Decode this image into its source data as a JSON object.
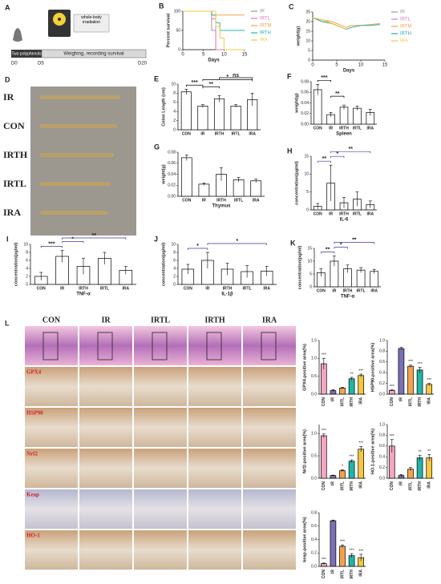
{
  "schematic": {
    "panel": "A",
    "phase1": "Two polyphenols",
    "phase2": "Weighing, recording survival",
    "irradiation": "whole-body irradiation",
    "days": [
      "D0",
      "D5",
      "D20"
    ]
  },
  "photo": {
    "panel": "D",
    "labels": [
      "IR",
      "CON",
      "IRTH",
      "IRTL",
      "IRA"
    ]
  },
  "histology": {
    "panel": "L",
    "columns": [
      "CON",
      "IR",
      "IRTL",
      "IRTH",
      "IRA"
    ],
    "rows": [
      "GPX4",
      "HSP90",
      "Nrf2",
      "Keap",
      "HO-1"
    ]
  },
  "chart_data": [
    {
      "panel": "B",
      "type": "line",
      "step": true,
      "ylabel": "Percent survival",
      "xlabel": "Days",
      "x": [
        0,
        6,
        7,
        8,
        9,
        10,
        15
      ],
      "xlim": [
        0,
        15
      ],
      "xticks": [
        0,
        5,
        10,
        15
      ],
      "ylim": [
        0,
        100
      ],
      "yticks": [
        0,
        50,
        100
      ],
      "series": [
        {
          "name": "IR",
          "color": "#999999",
          "values": [
            100,
            100,
            50,
            0,
            0,
            0,
            0
          ]
        },
        {
          "name": "IRTL",
          "color": "#e377c2",
          "values": [
            100,
            100,
            80,
            0,
            0,
            0,
            0
          ]
        },
        {
          "name": "IRTM",
          "color": "#f4a24a",
          "values": [
            100,
            100,
            90,
            90,
            90,
            90,
            90
          ]
        },
        {
          "name": "IRTH",
          "color": "#22b5a5",
          "values": [
            100,
            100,
            90,
            70,
            50,
            50,
            50
          ]
        },
        {
          "name": "IRA",
          "color": "#f5c842",
          "values": [
            100,
            100,
            100,
            60,
            30,
            0,
            0
          ]
        }
      ]
    },
    {
      "panel": "C",
      "type": "line",
      "ylabel": "weight(g)",
      "xlabel": "Days",
      "x": [
        0,
        2,
        4,
        6,
        7,
        8,
        10,
        12,
        14
      ],
      "xlim": [
        0,
        15
      ],
      "xticks": [
        0,
        5,
        10,
        15
      ],
      "ylim": [
        0,
        25
      ],
      "yticks": [
        0,
        5,
        10,
        15,
        20,
        25
      ],
      "series": [
        {
          "name": "IR",
          "color": "#999999",
          "values": [
            22,
            21,
            19,
            17,
            16,
            null,
            null,
            null,
            null
          ]
        },
        {
          "name": "IRTL",
          "color": "#e377c2",
          "values": [
            22,
            20,
            19,
            17,
            16,
            null,
            null,
            null,
            null
          ]
        },
        {
          "name": "IRTM",
          "color": "#f4a24a",
          "values": [
            22,
            21,
            20,
            18,
            17,
            18,
            18,
            18.5,
            19
          ]
        },
        {
          "name": "IRTH",
          "color": "#22b5a5",
          "values": [
            22,
            20,
            19,
            17,
            16,
            17,
            18,
            18,
            18.5
          ]
        },
        {
          "name": "IRA",
          "color": "#f5c842",
          "values": [
            22,
            21,
            19,
            17,
            16,
            null,
            null,
            null,
            null
          ]
        }
      ]
    },
    {
      "panel": "E",
      "type": "bar",
      "ylabel": "Colon Length (cm)",
      "categories": [
        "CON",
        "IR",
        "IRTH",
        "IRTL",
        "IRA"
      ],
      "values": [
        8.3,
        5.2,
        6.8,
        5.2,
        6.6
      ],
      "errors": [
        0.6,
        0.3,
        0.7,
        0.3,
        1.4
      ],
      "color": "#ffffff",
      "edge": "#000000",
      "ylim": [
        0,
        10
      ],
      "yticks": [
        0,
        2,
        4,
        6,
        8,
        10
      ],
      "bracket_color": "#000000",
      "annotations": [
        {
          "text": "***",
          "between": [
            "CON",
            "IR"
          ]
        },
        {
          "text": "**",
          "between": [
            "IR",
            "IRTH"
          ]
        },
        {
          "text": "*",
          "between": [
            "IR",
            "IRA"
          ]
        },
        {
          "text": "ns",
          "between": [
            "IRTH",
            "IRA"
          ]
        }
      ]
    },
    {
      "panel": "F",
      "type": "bar",
      "ylabel": "weight(g)",
      "xlabel": "Spleen",
      "categories": [
        "CON",
        "IR",
        "IRTH",
        "IRTL",
        "IRA"
      ],
      "values": [
        0.065,
        0.018,
        0.032,
        0.03,
        0.022
      ],
      "errors": [
        0.01,
        0.004,
        0.004,
        0.004,
        0.006
      ],
      "color": "#ffffff",
      "edge": "#000000",
      "ylim": [
        0,
        0.08
      ],
      "yticks": [
        {
          "value": 0,
          "label": "0.00"
        },
        0.02,
        0.04,
        0.06,
        0.08
      ],
      "bracket_color": "#000000",
      "annotations": [
        {
          "text": "***",
          "between": [
            "CON",
            "IR"
          ]
        },
        {
          "text": "**",
          "between": [
            "IR",
            "IRTH"
          ]
        }
      ]
    },
    {
      "panel": "G",
      "type": "bar",
      "ylabel": "weight(g)",
      "xlabel": "Thymus",
      "categories": [
        "CON",
        "IR",
        "IRTH",
        "IRTL",
        "IRA"
      ],
      "values": [
        0.07,
        0.022,
        0.04,
        0.03,
        0.028
      ],
      "errors": [
        0.005,
        0.002,
        0.012,
        0.004,
        0.003
      ],
      "color": "#ffffff",
      "edge": "#000000",
      "ylim": [
        0,
        0.08
      ],
      "yticks": [
        {
          "value": 0,
          "label": "0.00"
        },
        0.02,
        0.04,
        0.06,
        0.08
      ]
    },
    {
      "panel": "H",
      "type": "bar",
      "ylabel": "concentration(pg/ml)",
      "xlabel": "IL-6",
      "categories": [
        "CON",
        "IR",
        "IRTH",
        "IRTL",
        "IRA"
      ],
      "values": [
        1,
        7.5,
        2,
        3,
        1.5
      ],
      "errors": [
        0.8,
        5,
        1.5,
        2,
        1
      ],
      "color": "#ffffff",
      "edge": "#000000",
      "ylim": [
        0,
        15
      ],
      "yticks": [
        0,
        5,
        10,
        15
      ],
      "bracket_color": "#3a3a9a",
      "annotations": [
        {
          "text": "**",
          "between": [
            "CON",
            "IR"
          ]
        },
        {
          "text": "*",
          "between": [
            "IR",
            "IRTH"
          ]
        },
        {
          "text": "**",
          "between": [
            "IR",
            "IRA"
          ]
        }
      ]
    },
    {
      "panel": "I",
      "type": "bar",
      "ylabel": "concentration(pg/ml)",
      "xlabel": "TNF-α",
      "categories": [
        "CON",
        "IR",
        "IRTH",
        "IRTL",
        "IRA"
      ],
      "values": [
        2,
        7,
        4.5,
        6.5,
        3.5
      ],
      "errors": [
        1,
        1.5,
        2,
        1.5,
        1
      ],
      "color": "#ffffff",
      "edge": "#000000",
      "ylim": [
        0,
        10
      ],
      "yticks": [
        0,
        2,
        4,
        6,
        8,
        10
      ],
      "bracket_color": "#3a3a9a",
      "annotations": [
        {
          "text": "***",
          "between": [
            "CON",
            "IR"
          ]
        },
        {
          "text": "*",
          "between": [
            "IR",
            "IRTH"
          ]
        },
        {
          "text": "**",
          "between": [
            "IR",
            "IRA"
          ]
        }
      ]
    },
    {
      "panel": "J",
      "type": "bar",
      "ylabel": "concentration(pg/ml)",
      "xlabel": "IL-1β",
      "categories": [
        "CON",
        "IR",
        "IRTH",
        "IRTL",
        "IRA"
      ],
      "values": [
        3.8,
        6,
        3.8,
        3.2,
        3.3
      ],
      "errors": [
        1.2,
        2,
        1.5,
        1.5,
        1.2
      ],
      "color": "#ffffff",
      "edge": "#000000",
      "ylim": [
        0,
        10
      ],
      "yticks": [
        0,
        2,
        4,
        6,
        8,
        10
      ],
      "bracket_color": "#3a3a9a",
      "annotations": [
        {
          "text": "*",
          "between": [
            "CON",
            "IR"
          ]
        },
        {
          "text": "*",
          "between": [
            "IR",
            "IRA"
          ]
        }
      ]
    },
    {
      "panel": "K",
      "type": "bar",
      "ylabel": "concentration(pg/ml)",
      "xlabel": "TNF-α",
      "categories": [
        "CON",
        "IR",
        "IRTH",
        "IRTL",
        "IRA"
      ],
      "values": [
        5.5,
        10,
        7,
        6.5,
        6
      ],
      "errors": [
        1.5,
        2,
        1.5,
        1,
        0.8
      ],
      "color": "#ffffff",
      "edge": "#000000",
      "ylim": [
        0,
        15
      ],
      "yticks": [
        0,
        5,
        10,
        15
      ],
      "bracket_color": "#3a3a9a",
      "annotations": [
        {
          "text": "**",
          "between": [
            "CON",
            "IR"
          ]
        },
        {
          "text": "*",
          "between": [
            "IR",
            "IRTH"
          ]
        },
        {
          "text": "**",
          "between": [
            "IR",
            "IRA"
          ]
        }
      ]
    },
    {
      "type": "bar",
      "ylabel": "GPX4-positive area(%)",
      "categories": [
        "CON",
        "IR",
        "IRTL",
        "IRTH",
        "IRA"
      ],
      "values": [
        0.85,
        0.1,
        0.17,
        0.43,
        0.52
      ],
      "errors": [
        0.15,
        0.03,
        0.02,
        0.04,
        0.04
      ],
      "colors": [
        "#f4a6c0",
        "#7b6fb5",
        "#f4a24a",
        "#22b5a5",
        "#f5c842"
      ],
      "edge": "#000000",
      "ylim": [
        0,
        1.5
      ],
      "yticks": [
        {
          "value": 0,
          "label": "0.0"
        },
        0.5,
        {
          "value": 1,
          "label": "1.0"
        },
        1.5
      ],
      "significance": [
        "***",
        null,
        null,
        "**",
        "***"
      ]
    },
    {
      "type": "bar",
      "ylabel": "HSP90-positive area(%)",
      "categories": [
        "CON",
        "IR",
        "IRTL",
        "IRTH",
        "IRA"
      ],
      "values": [
        0.07,
        0.85,
        0.52,
        0.45,
        0.18
      ],
      "errors": [
        0.01,
        0.02,
        0.02,
        0.05,
        0.02
      ],
      "colors": [
        "#f4a6c0",
        "#7b6fb5",
        "#f4a24a",
        "#22b5a5",
        "#f5c842"
      ],
      "edge": "#000000",
      "ylim": [
        0,
        1
      ],
      "yticks": [
        {
          "value": 0,
          "label": "0.0"
        },
        0.2,
        0.4,
        0.6,
        0.8,
        {
          "value": 1,
          "label": "1.0"
        }
      ],
      "significance": [
        "***",
        null,
        "***",
        "***",
        "***"
      ]
    },
    {
      "type": "bar",
      "ylabel": "Nrf2-positive area(%)",
      "categories": [
        "CON",
        "IR",
        "IRTL",
        "IRTH",
        "IRA"
      ],
      "values": [
        0.95,
        0.06,
        0.17,
        0.38,
        0.65
      ],
      "errors": [
        0.04,
        0.01,
        0.02,
        0.03,
        0.06
      ],
      "colors": [
        "#f4a6c0",
        "#7b6fb5",
        "#f4a24a",
        "#22b5a5",
        "#f5c842"
      ],
      "edge": "#000000",
      "ylim": [
        0,
        1.2
      ],
      "yticks": [
        {
          "value": 0,
          "label": "0.0"
        },
        0.5,
        {
          "value": 1,
          "label": "1.0"
        }
      ],
      "significance": [
        "***",
        null,
        "*",
        "***",
        "***"
      ]
    },
    {
      "type": "bar",
      "ylabel": "HO-1-positive area(%)",
      "categories": [
        "CON",
        "IR",
        "IRTL",
        "IRTH",
        "IRA"
      ],
      "values": [
        0.6,
        0.05,
        0.17,
        0.38,
        0.38
      ],
      "errors": [
        0.12,
        0.02,
        0.03,
        0.05,
        0.06
      ],
      "colors": [
        "#f4a6c0",
        "#7b6fb5",
        "#f4a24a",
        "#22b5a5",
        "#f5c842"
      ],
      "edge": "#000000",
      "ylim": [
        0,
        1
      ],
      "yticks": [
        {
          "value": 0,
          "label": "0.0"
        },
        0.2,
        0.4,
        0.6,
        0.8,
        {
          "value": 1,
          "label": "1.0"
        }
      ],
      "significance": [
        "***",
        null,
        null,
        "**",
        "**"
      ]
    },
    {
      "type": "bar",
      "ylabel": "keap-positive area(%)",
      "categories": [
        "CON",
        "IR",
        "IRTL",
        "IRTH",
        "IRA"
      ],
      "values": [
        0.04,
        0.68,
        0.3,
        0.16,
        0.13
      ],
      "errors": [
        0.01,
        0.01,
        0.02,
        0.03,
        0.05
      ],
      "colors": [
        "#f4a6c0",
        "#7b6fb5",
        "#f4a24a",
        "#22b5a5",
        "#f5c842"
      ],
      "edge": "#000000",
      "ylim": [
        0,
        0.8
      ],
      "yticks": [
        {
          "value": 0,
          "label": "0.0"
        },
        0.2,
        0.4,
        0.6,
        0.8
      ],
      "significance": [
        "***",
        null,
        "***",
        "***",
        "***"
      ]
    }
  ]
}
